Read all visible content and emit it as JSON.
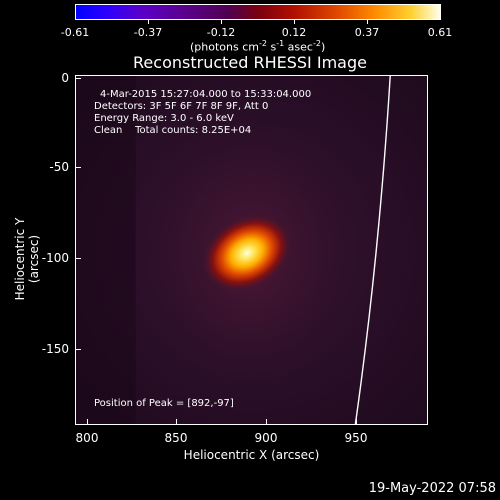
{
  "colorbar": {
    "ticks": [
      "-0.61",
      "-0.37",
      "-0.12",
      "0.12",
      "0.37",
      "0.61"
    ],
    "units_prefix": "(photons cm",
    "units_suffix": " s",
    "units_tail": " asec",
    "units_close": ")",
    "exp1": "-2",
    "exp2": "-1",
    "exp3": "-2"
  },
  "title": "Reconstructed RHESSI Image",
  "info": {
    "time_range": "4-Mar-2015 15:27:04.000 to 15:33:04.000",
    "detectors": "Detectors: 3F 5F 6F 7F 8F 9F, Att 0",
    "energy": "Energy Range: 3.0 - 6.0 keV",
    "method": "Clean    Total counts: 8.25E+04",
    "peak": "Position of Peak = [892,-97]"
  },
  "axes": {
    "xlabel": "Heliocentric X (arcsec)",
    "ylabel": "Heliocentric Y (arcsec)",
    "xticks": [
      "800",
      "850",
      "900",
      "950"
    ],
    "yticks": [
      "0",
      "-50",
      "-100",
      "-150"
    ],
    "xlim": [
      793,
      990
    ],
    "ylim": [
      -190,
      0
    ]
  },
  "datestamp": "19-May-2022 07:58",
  "colors": {
    "limb": "#ffffff",
    "background": "#000000"
  }
}
